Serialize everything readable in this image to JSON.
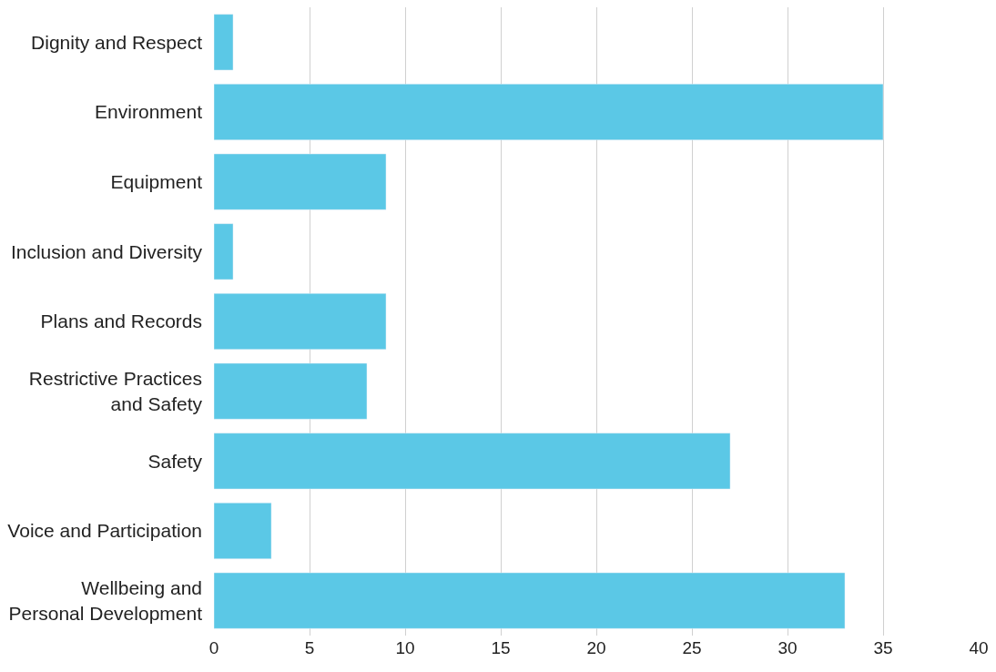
{
  "chart_data": {
    "type": "bar",
    "orientation": "horizontal",
    "categories": [
      "Dignity and Respect",
      "Environment",
      "Equipment",
      "Inclusion and Diversity",
      "Plans and Records",
      "Restrictive Practices and Safety",
      "Safety",
      "Voice and Participation",
      "Wellbeing and Personal Development"
    ],
    "values": [
      1,
      35,
      9,
      1,
      9,
      8,
      27,
      3,
      33
    ],
    "color": "#5bc8e6",
    "xlim": [
      0,
      40
    ],
    "xticks": [
      0,
      5,
      10,
      15,
      20,
      25,
      30,
      35,
      40
    ],
    "grid": "x"
  }
}
